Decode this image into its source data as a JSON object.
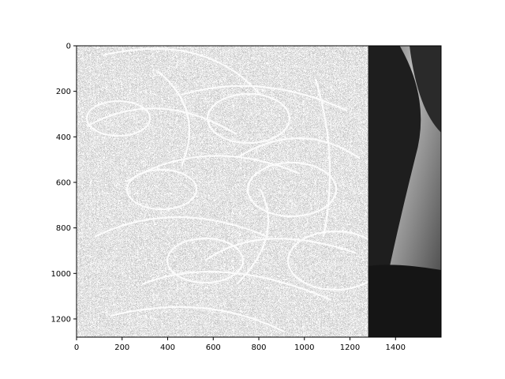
{
  "chart_data": {
    "type": "heatmap",
    "title": "",
    "xlabel": "",
    "ylabel": "",
    "colormap": "gray",
    "image_description": "grayscale image; left region (x 0–1280) is a noisy high-contrast edge-filtered texture, right strip (x 1280–1600) is a smooth grayscale photo",
    "xlim": [
      0,
      1600
    ],
    "ylim": [
      1280,
      0
    ],
    "split_x": 1280,
    "x_ticks": [
      0,
      200,
      400,
      600,
      800,
      1000,
      1200,
      1400
    ],
    "y_ticks": [
      0,
      200,
      400,
      600,
      800,
      1000,
      1200
    ],
    "x_tick_labels": [
      "0",
      "200",
      "400",
      "600",
      "800",
      "1000",
      "1200",
      "1400"
    ],
    "y_tick_labels": [
      "0",
      "200",
      "400",
      "600",
      "800",
      "1000",
      "1200"
    ],
    "grid": false,
    "legend": "none"
  }
}
